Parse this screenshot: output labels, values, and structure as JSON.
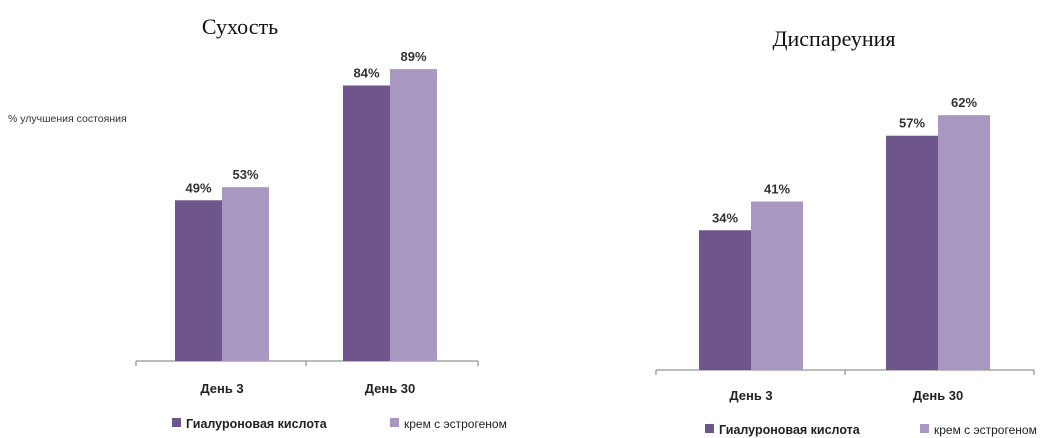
{
  "colors": {
    "series1": "#6e558c",
    "series2": "#a898c1"
  },
  "chart_data": [
    {
      "type": "bar",
      "title": "Сухость",
      "ylabel": "% улучшения состояния",
      "xlabel": "",
      "categories": [
        "День 3",
        "День 30"
      ],
      "ylim": [
        0,
        100
      ],
      "grid": false,
      "legend": "bottom",
      "series": [
        {
          "name": "Гиалуроновая кислота",
          "values": [
            49,
            84
          ],
          "labels": [
            "49%",
            "84%"
          ]
        },
        {
          "name": "крем с эстрогеном",
          "values": [
            53,
            89
          ],
          "labels": [
            "53%",
            "89%"
          ]
        }
      ]
    },
    {
      "type": "bar",
      "title": "Диспареуния",
      "ylabel": "",
      "xlabel": "",
      "categories": [
        "День 3",
        "День 30"
      ],
      "ylim": [
        0,
        100
      ],
      "grid": false,
      "legend": "bottom",
      "series": [
        {
          "name": "Гиалуроновая кислота",
          "values": [
            34,
            57
          ],
          "labels": [
            "34%",
            "57%"
          ]
        },
        {
          "name": "крем с эстрогеном",
          "values": [
            41,
            62
          ],
          "labels": [
            "41%",
            "62%"
          ]
        }
      ]
    }
  ]
}
